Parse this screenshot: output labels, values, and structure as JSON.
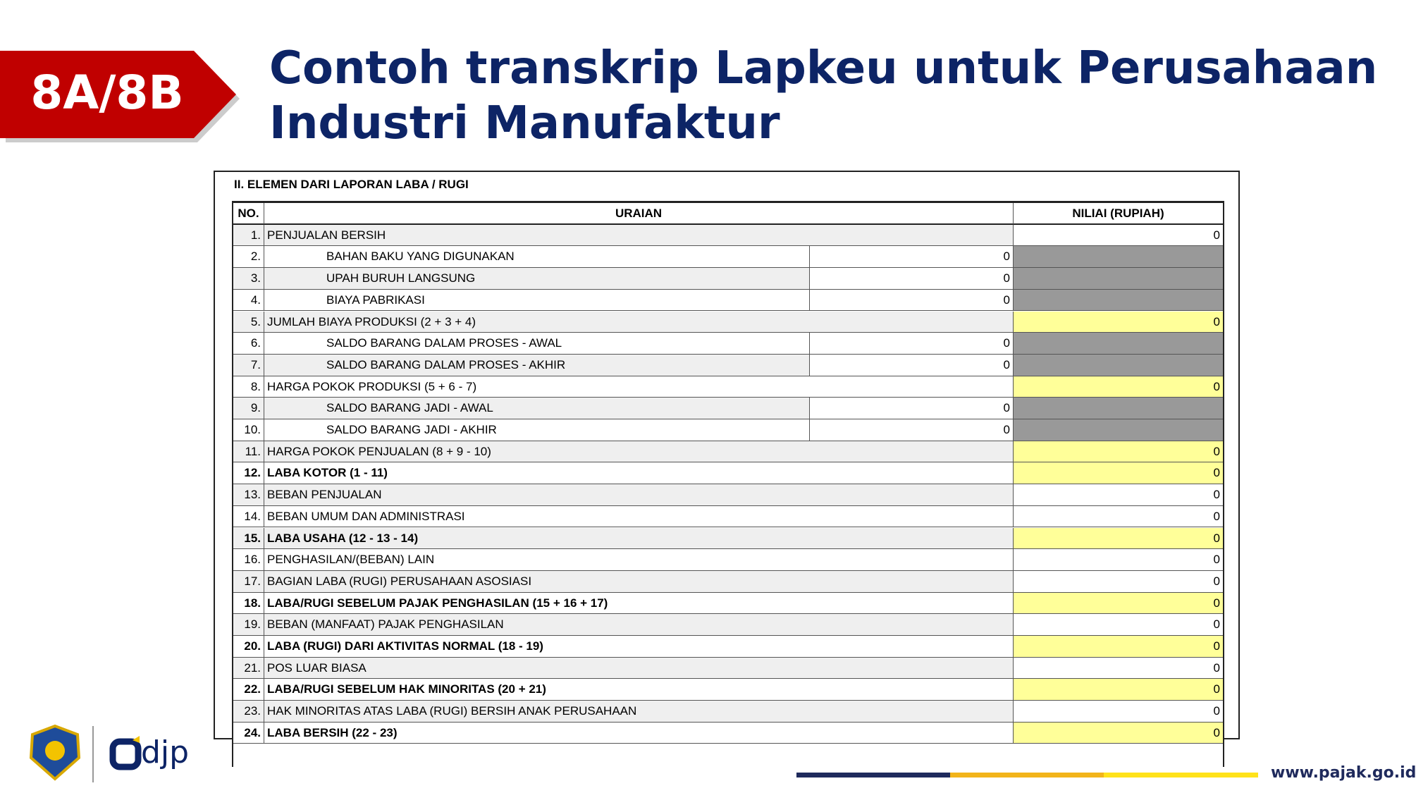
{
  "badge": "8A/8B",
  "title": [
    "Contoh transkrip Lapkeu untuk Perusahaan",
    "Industri Manufaktur"
  ],
  "table": {
    "section": "II. ELEMEN DARI LAPORAN LABA / RUGI",
    "headers": [
      "NO.",
      "URAIAN",
      "NILIAI (RUPIAH)"
    ],
    "rows": [
      {
        "no": "1.",
        "label": "PENJUALAN BERSIH",
        "value": 0
      },
      {
        "no": "2.",
        "label": "BAHAN BAKU YANG DIGUNAKAN",
        "sub": 0
      },
      {
        "no": "3.",
        "label": "UPAH BURUH LANGSUNG",
        "sub": 0
      },
      {
        "no": "4.",
        "label": "BIAYA PABRIKASI",
        "sub": 0
      },
      {
        "no": "5.",
        "label": "JUMLAH BIAYA PRODUKSI (2 + 3 + 4)",
        "value": 0,
        "highlight": true
      },
      {
        "no": "6.",
        "label": "SALDO BARANG DALAM PROSES - AWAL",
        "sub": 0
      },
      {
        "no": "7.",
        "label": "SALDO BARANG DALAM PROSES - AKHIR",
        "sub": 0
      },
      {
        "no": "8.",
        "label": "HARGA POKOK PRODUKSI (5 + 6 - 7)",
        "value": 0,
        "highlight": true
      },
      {
        "no": "9.",
        "label": "SALDO BARANG JADI - AWAL",
        "sub": 0
      },
      {
        "no": "10.",
        "label": "SALDO BARANG JADI - AKHIR",
        "sub": 0
      },
      {
        "no": "11.",
        "label": "HARGA POKOK PENJUALAN (8 + 9 - 10)",
        "value": 0,
        "highlight": true
      },
      {
        "no": "12.",
        "label": "LABA KOTOR (1 - 11)",
        "value": 0,
        "highlight": true,
        "bold": true
      },
      {
        "no": "13.",
        "label": "BEBAN PENJUALAN",
        "value": 0
      },
      {
        "no": "14.",
        "label": "BEBAN UMUM DAN ADMINISTRASI",
        "value": 0
      },
      {
        "no": "15.",
        "label": "LABA USAHA (12 - 13 - 14)",
        "value": 0,
        "highlight": true,
        "bold": true
      },
      {
        "no": "16.",
        "label": "PENGHASILAN/(BEBAN) LAIN",
        "value": 0
      },
      {
        "no": "17.",
        "label": "BAGIAN LABA (RUGI) PERUSAHAAN ASOSIASI",
        "value": 0
      },
      {
        "no": "18.",
        "label": "LABA/RUGI SEBELUM PAJAK PENGHASILAN (15 + 16 + 17)",
        "value": 0,
        "highlight": true,
        "bold": true
      },
      {
        "no": "19.",
        "label": "BEBAN (MANFAAT) PAJAK PENGHASILAN",
        "value": 0
      },
      {
        "no": "20.",
        "label": "LABA (RUGI) DARI AKTIVITAS NORMAL (18 - 19)",
        "value": 0,
        "highlight": true,
        "bold": true
      },
      {
        "no": "21.",
        "label": "POS LUAR BIASA",
        "value": 0
      },
      {
        "no": "22.",
        "label": "LABA/RUGI SEBELUM HAK MINORITAS (20 + 21)",
        "value": 0,
        "highlight": true,
        "bold": true
      },
      {
        "no": "23.",
        "label": "HAK MINORITAS ATAS LABA (RUGI) BERSIH ANAK PERUSAHAAN",
        "value": 0
      },
      {
        "no": "24.",
        "label": "LABA BERSIH (22 - 23)",
        "value": 0,
        "highlight": true,
        "bold": true
      }
    ]
  },
  "footer": {
    "logo": "djp",
    "url": "www.pajak.go.id"
  }
}
